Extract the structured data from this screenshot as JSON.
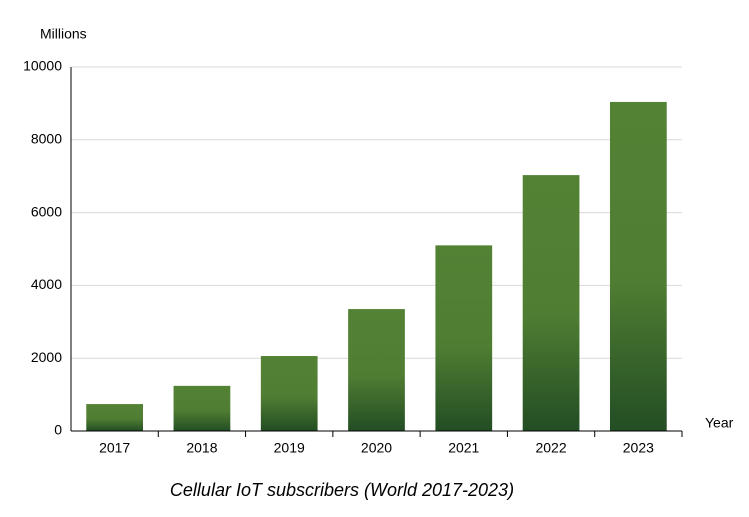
{
  "chart_data": {
    "type": "bar",
    "title": "Cellular IoT subscribers (World 2017-2023)",
    "y_label": "Millions",
    "x_label": "Year",
    "categories": [
      "2017",
      "2018",
      "2019",
      "2020",
      "2021",
      "2022",
      "2023"
    ],
    "values": [
      740,
      1240,
      2060,
      3350,
      5100,
      7030,
      9040
    ],
    "color": "#548235",
    "ylim": [
      0,
      10000
    ],
    "yticks": [
      0,
      2000,
      4000,
      6000,
      8000,
      10000
    ],
    "grid": true
  }
}
